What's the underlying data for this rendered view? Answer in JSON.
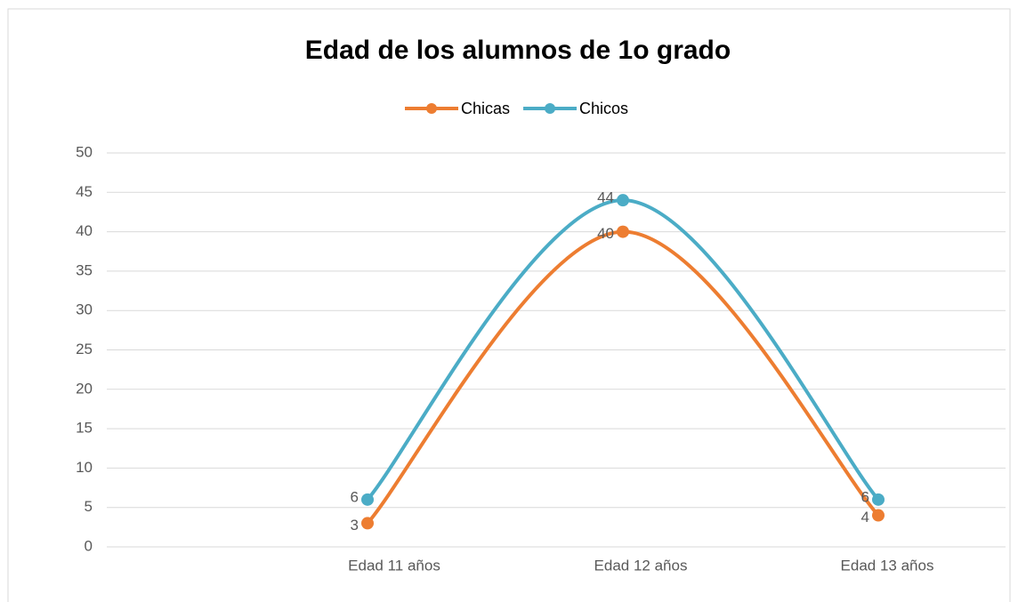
{
  "chart_data": {
    "type": "line",
    "title": "Edad de los alumnos de 1o grado",
    "categories": [
      null,
      "Edad 11 años",
      "Edad 12 años",
      "Edad 13 años"
    ],
    "series": [
      {
        "name": "Chicas",
        "color": "#ED7D31",
        "values": [
          null,
          3,
          40,
          4
        ]
      },
      {
        "name": "Chicos",
        "color": "#4BACC6",
        "values": [
          null,
          6,
          44,
          6
        ]
      }
    ],
    "ylim": [
      0,
      50
    ],
    "yticks": [
      0,
      5,
      10,
      15,
      20,
      25,
      30,
      35,
      40,
      45,
      50
    ],
    "grid": true,
    "legend": "top",
    "smooth": true
  }
}
